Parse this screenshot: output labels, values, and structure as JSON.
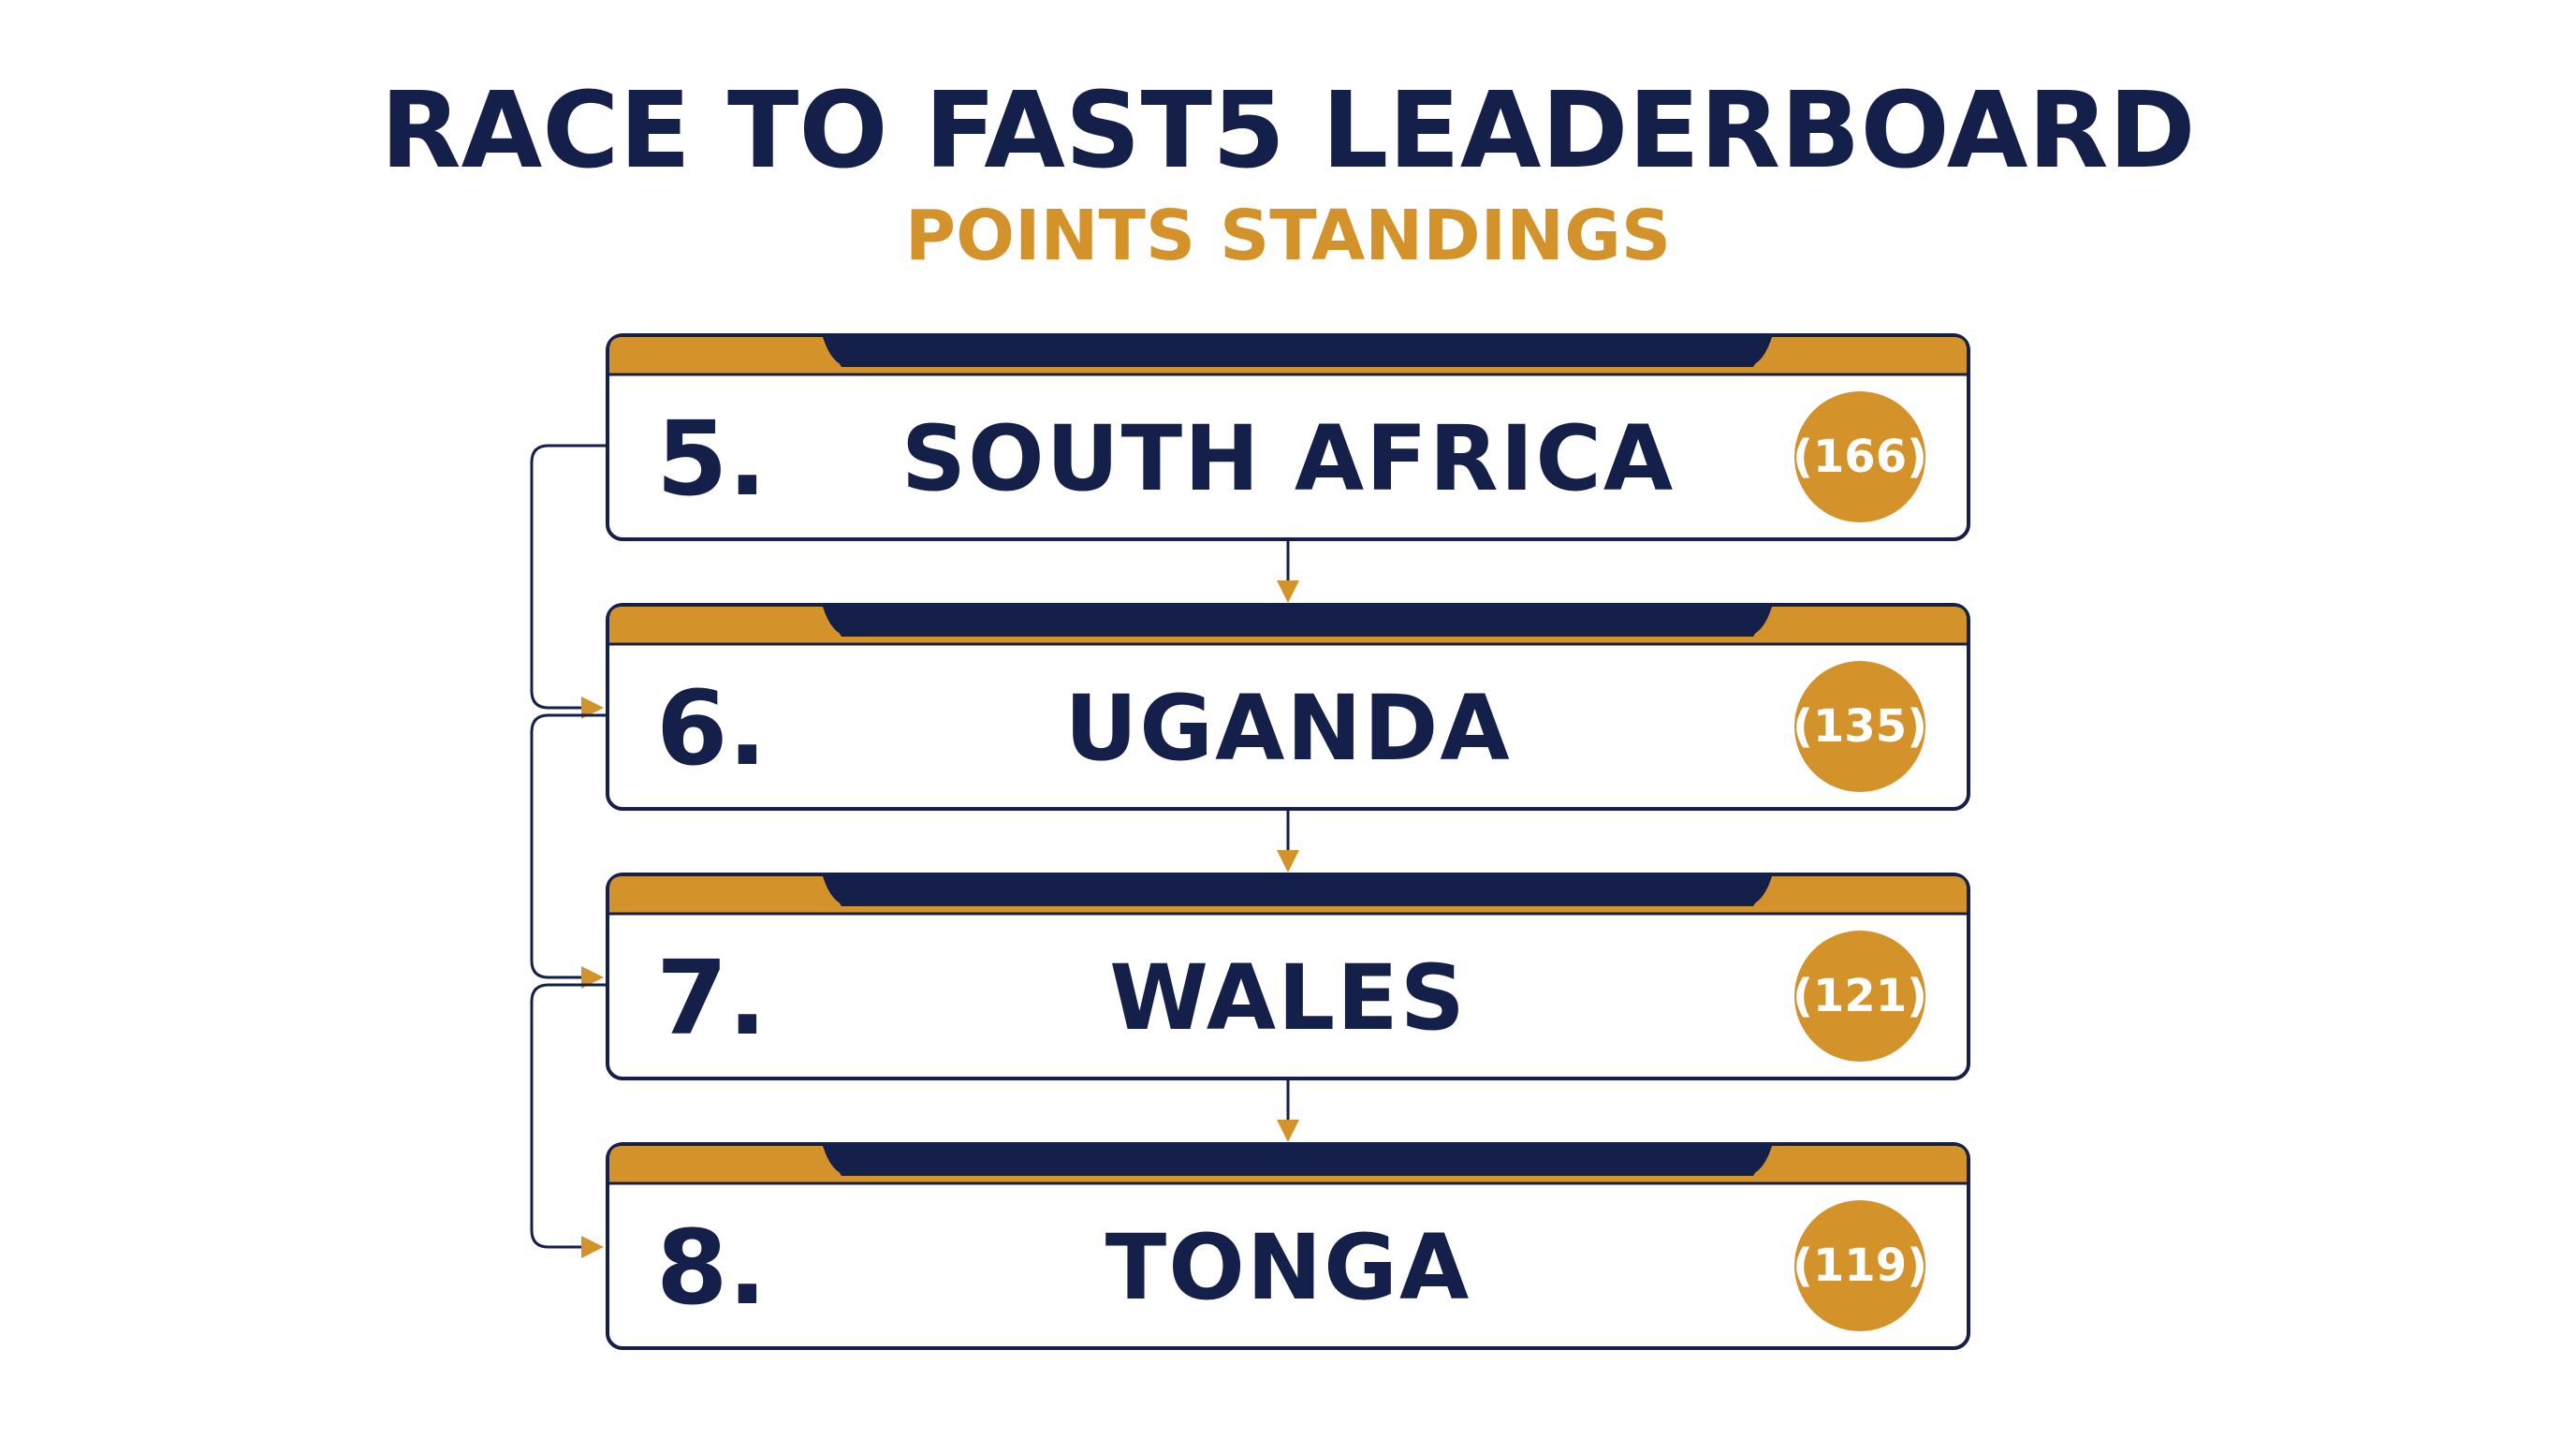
{
  "header": {
    "title": "RACE TO FAST5 LEADERBOARD",
    "subtitle": "POINTS STANDINGS"
  },
  "entries": [
    {
      "rank": "5.",
      "name": "SOUTH AFRICA",
      "points": "(166)"
    },
    {
      "rank": "6.",
      "name": "UGANDA",
      "points": "(135)"
    },
    {
      "rank": "7.",
      "name": "WALES",
      "points": "(121)"
    },
    {
      "rank": "8.",
      "name": "TONGA",
      "points": "(119)"
    }
  ]
}
